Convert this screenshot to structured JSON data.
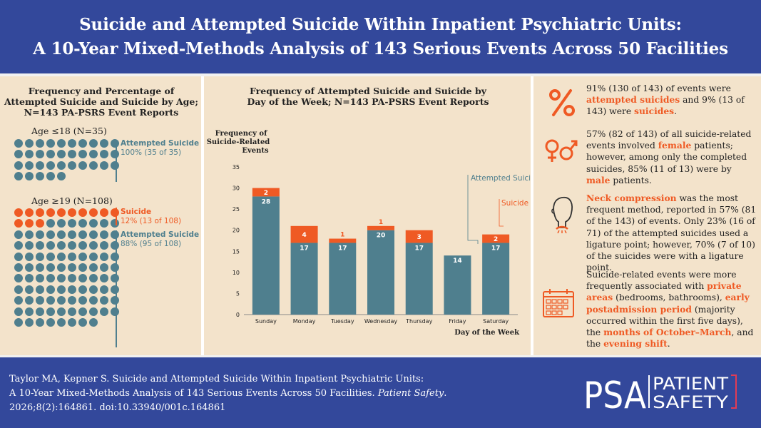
{
  "header": {
    "title_line1": "Suicide and Attempted Suicide Within Inpatient Psychiatric Units:",
    "title_line2": "A 10-Year Mixed-Methods Analysis of 143 Serious Events Across 50 Facilities"
  },
  "age_panel": {
    "title_lines": [
      "Frequency and Percentage of",
      "Attempted Suicide and Suicide by Age;",
      "N=143 PA-PSRS Event Reports"
    ],
    "group1": {
      "label": "Age ≤18 (N=35)",
      "attempted_name": "Attempted Suicide",
      "attempted_stat": "100% (35 of 35)",
      "attempted_count": 35,
      "suicide_count": 0
    },
    "group2": {
      "label": "Age ≥19 (N=108)",
      "suicide_name": "Suicide",
      "suicide_stat": "12% (13 of 108)",
      "attempted_name": "Attempted Suicide",
      "attempted_stat": "88% (95 of 108)",
      "attempted_count": 95,
      "suicide_count": 13
    },
    "colors": {
      "attempted": "#4f7f8e",
      "suicide": "#ef5a24"
    }
  },
  "chart_data": {
    "type": "bar",
    "stacked": true,
    "title_lines": [
      "Frequency of Attempted Suicide and Suicide by",
      "Day of the Week; N=143 PA-PSRS Event Reports"
    ],
    "ylabel_lines": [
      "Frequency of",
      "Suicide-Related",
      "Events"
    ],
    "xlabel": "Day of the Week",
    "categories": [
      "Sunday",
      "Monday",
      "Tuesday",
      "Wednesday",
      "Thursday",
      "Friday",
      "Saturday"
    ],
    "series": [
      {
        "name": "Attempted Suicide",
        "values": [
          28,
          17,
          17,
          20,
          17,
          14,
          17
        ],
        "color": "#4f7f8e"
      },
      {
        "name": "Suicide",
        "values": [
          2,
          4,
          1,
          1,
          3,
          0,
          2
        ],
        "color": "#ef5a24"
      }
    ],
    "ylim": [
      0,
      35
    ],
    "yticks": [
      0,
      5,
      10,
      15,
      20,
      25,
      30,
      35
    ],
    "grid": false,
    "legend": "annotated-right"
  },
  "facts": {
    "f1": {
      "icon": "percent-icon",
      "parts": [
        "91% (130 of 143) of events were ",
        "attempted suicides",
        " and 9% (13 of 143) were ",
        "suicides",
        "."
      ]
    },
    "f2": {
      "icon": "gender-icon",
      "parts": [
        "57% (82 of 143) of all suicide-related events involved ",
        "female",
        " patients; however, among only the completed suicides, 85% (11 of 13) were by ",
        "male",
        " patients."
      ]
    },
    "f3": {
      "icon": "neck-compression-icon",
      "parts": [
        "Neck compression",
        " was the most frequent method, reported in 57% (81 of the 143) of events. Only 23% (16 of 71) of the attempted suicides used a ligature point; however, 70% (7 of 10) of the suicides were with a ligature point."
      ]
    },
    "f4": {
      "icon": "calendar-icon",
      "parts": [
        "Suicide-related events were more frequently associated with ",
        "private areas",
        " (bedrooms, bathrooms), ",
        "early postadmission period",
        " (majority occurred within the first five days), the ",
        "months of October–March",
        ", and the ",
        "evening shift",
        "."
      ]
    }
  },
  "citation": {
    "line1": "Taylor MA, Kepner S. Suicide and Attempted Suicide Within Inpatient Psychiatric Units:",
    "line2_a": "A 10-Year Mixed-Methods Analysis of 143 Serious Events Across 50 Facilities. ",
    "journal": "Patient Safety",
    "line2_b": ".",
    "line3": "2026;8(2):164861. doi:10.33940/001c.164861"
  },
  "logo": {
    "mark": "PSA",
    "word1": "PATIENT",
    "word2": "SAFETY"
  }
}
